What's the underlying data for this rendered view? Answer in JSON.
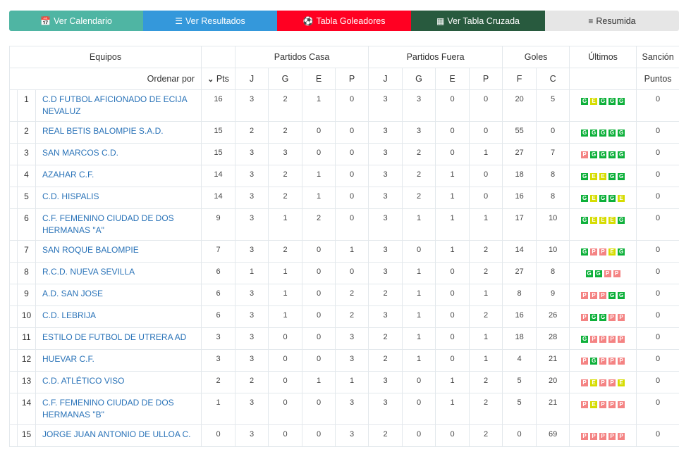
{
  "nav": [
    {
      "label": "Ver Calendario",
      "icon": "calendar-icon",
      "color": "#4fb5a3"
    },
    {
      "label": "Ver Resultados",
      "icon": "list-icon",
      "color": "#3498db"
    },
    {
      "label": "Tabla Goleadores",
      "icon": "soccer-ball-icon",
      "color": "#ff0022"
    },
    {
      "label": "Ver Tabla Cruzada",
      "icon": "calculator-icon",
      "color": "#285a3e"
    },
    {
      "label": "Resumida",
      "icon": "indent-icon",
      "color": "#e6e6e6"
    }
  ],
  "header": {
    "equipos": "Equipos",
    "casa": "Partidos Casa",
    "fuera": "Partidos Fuera",
    "goles": "Goles",
    "ultimos": "Últimos",
    "sancion": "Sanción",
    "ordenar": "Ordenar por",
    "pts": "Pts",
    "j": "J",
    "g": "G",
    "e": "E",
    "p": "P",
    "f": "F",
    "c": "C",
    "puntos": "Puntos"
  },
  "rows": [
    {
      "pos": "1",
      "team": "C.D FUTBOL AFICIONADO DE ECIJA NEVALUZ",
      "pts": "16",
      "cj": "3",
      "cg": "2",
      "ce": "1",
      "cp": "0",
      "fj": "3",
      "fg": "3",
      "fe": "0",
      "fp": "0",
      "gf": "20",
      "gc": "5",
      "last": "GEGGG",
      "san": "0"
    },
    {
      "pos": "2",
      "team": "REAL BETIS BALOMPIE S.A.D.",
      "pts": "15",
      "cj": "2",
      "cg": "2",
      "ce": "0",
      "cp": "0",
      "fj": "3",
      "fg": "3",
      "fe": "0",
      "fp": "0",
      "gf": "55",
      "gc": "0",
      "last": "GGGGG",
      "san": "0"
    },
    {
      "pos": "3",
      "team": "SAN MARCOS C.D.",
      "pts": "15",
      "cj": "3",
      "cg": "3",
      "ce": "0",
      "cp": "0",
      "fj": "3",
      "fg": "2",
      "fe": "0",
      "fp": "1",
      "gf": "27",
      "gc": "7",
      "last": "PGGGG",
      "san": "0"
    },
    {
      "pos": "4",
      "team": "AZAHAR C.F.",
      "pts": "14",
      "cj": "3",
      "cg": "2",
      "ce": "1",
      "cp": "0",
      "fj": "3",
      "fg": "2",
      "fe": "1",
      "fp": "0",
      "gf": "18",
      "gc": "8",
      "last": "GEEGG",
      "san": "0"
    },
    {
      "pos": "5",
      "team": "C.D. HISPALIS",
      "pts": "14",
      "cj": "3",
      "cg": "2",
      "ce": "1",
      "cp": "0",
      "fj": "3",
      "fg": "2",
      "fe": "1",
      "fp": "0",
      "gf": "16",
      "gc": "8",
      "last": "GEGGE",
      "san": "0"
    },
    {
      "pos": "6",
      "team": "C.F. FEMENINO CIUDAD DE DOS HERMANAS \"A\"",
      "pts": "9",
      "cj": "3",
      "cg": "1",
      "ce": "2",
      "cp": "0",
      "fj": "3",
      "fg": "1",
      "fe": "1",
      "fp": "1",
      "gf": "17",
      "gc": "10",
      "last": "GEEEG",
      "san": "0"
    },
    {
      "pos": "7",
      "team": "SAN ROQUE BALOMPIE",
      "pts": "7",
      "cj": "3",
      "cg": "2",
      "ce": "0",
      "cp": "1",
      "fj": "3",
      "fg": "0",
      "fe": "1",
      "fp": "2",
      "gf": "14",
      "gc": "10",
      "last": "GPPEG",
      "san": "0"
    },
    {
      "pos": "8",
      "team": "R.C.D. NUEVA SEVILLA",
      "pts": "6",
      "cj": "1",
      "cg": "1",
      "ce": "0",
      "cp": "0",
      "fj": "3",
      "fg": "1",
      "fe": "0",
      "fp": "2",
      "gf": "27",
      "gc": "8",
      "last": "GGPP",
      "san": "0"
    },
    {
      "pos": "9",
      "team": "A.D. SAN JOSE",
      "pts": "6",
      "cj": "3",
      "cg": "1",
      "ce": "0",
      "cp": "2",
      "fj": "2",
      "fg": "1",
      "fe": "0",
      "fp": "1",
      "gf": "8",
      "gc": "9",
      "last": "PPPGG",
      "san": "0"
    },
    {
      "pos": "10",
      "team": "C.D. LEBRIJA",
      "pts": "6",
      "cj": "3",
      "cg": "1",
      "ce": "0",
      "cp": "2",
      "fj": "3",
      "fg": "1",
      "fe": "0",
      "fp": "2",
      "gf": "16",
      "gc": "26",
      "last": "PGGPP",
      "san": "0"
    },
    {
      "pos": "11",
      "team": "ESTILO DE FUTBOL DE UTRERA AD",
      "pts": "3",
      "cj": "3",
      "cg": "0",
      "ce": "0",
      "cp": "3",
      "fj": "2",
      "fg": "1",
      "fe": "0",
      "fp": "1",
      "gf": "18",
      "gc": "28",
      "last": "GPPPP",
      "san": "0"
    },
    {
      "pos": "12",
      "team": "HUEVAR C.F.",
      "pts": "3",
      "cj": "3",
      "cg": "0",
      "ce": "0",
      "cp": "3",
      "fj": "2",
      "fg": "1",
      "fe": "0",
      "fp": "1",
      "gf": "4",
      "gc": "21",
      "last": "PGPPP",
      "san": "0"
    },
    {
      "pos": "13",
      "team": "C.D. ATLÉTICO VISO",
      "pts": "2",
      "cj": "2",
      "cg": "0",
      "ce": "1",
      "cp": "1",
      "fj": "3",
      "fg": "0",
      "fe": "1",
      "fp": "2",
      "gf": "5",
      "gc": "20",
      "last": "PEPPE",
      "san": "0"
    },
    {
      "pos": "14",
      "team": "C.F. FEMENINO CIUDAD DE DOS HERMANAS \"B\"",
      "pts": "1",
      "cj": "3",
      "cg": "0",
      "ce": "0",
      "cp": "3",
      "fj": "3",
      "fg": "0",
      "fe": "1",
      "fp": "2",
      "gf": "5",
      "gc": "21",
      "last": "PEPPP",
      "san": "0"
    },
    {
      "pos": "15",
      "team": "JORGE JUAN ANTONIO DE ULLOA C.",
      "pts": "0",
      "cj": "3",
      "cg": "0",
      "ce": "0",
      "cp": "3",
      "fj": "2",
      "fg": "0",
      "fe": "0",
      "fp": "2",
      "gf": "0",
      "gc": "69",
      "last": "PPPPP",
      "san": "0"
    }
  ]
}
